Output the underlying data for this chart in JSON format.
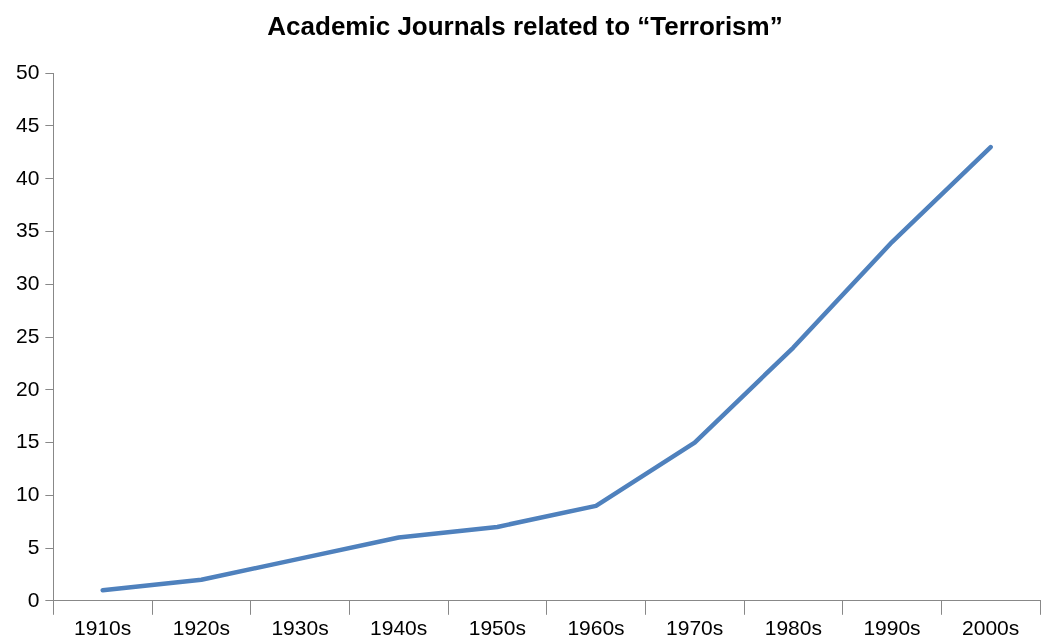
{
  "chart_data": {
    "type": "line",
    "title": "Academic Journals related to “Terrorism”",
    "categories": [
      "1910s",
      "1920s",
      "1930s",
      "1940s",
      "1950s",
      "1960s",
      "1970s",
      "1980s",
      "1990s",
      "2000s"
    ],
    "series": [
      {
        "color": "#4f81bd",
        "values": [
          1,
          2,
          4,
          6,
          7,
          9,
          15,
          24,
          34,
          43
        ]
      }
    ],
    "ylim": [
      0,
      50
    ],
    "yticks": [
      0,
      5,
      10,
      15,
      20,
      25,
      30,
      35,
      40,
      45,
      50
    ],
    "grid": false,
    "legend": false,
    "marker": "none",
    "line_style": "solid"
  }
}
